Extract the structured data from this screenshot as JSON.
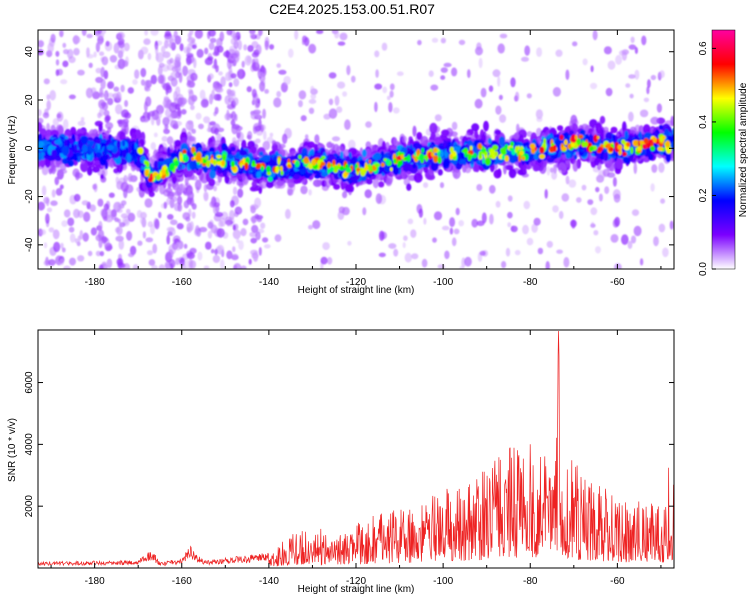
{
  "title": "C2E4.2025.153.00.51.R07",
  "chart_data": [
    {
      "type": "heatmap",
      "name": "spectrogram",
      "xlabel": "Height of straight line (km)",
      "ylabel": "Frequency (Hz)",
      "xlim": [
        -193,
        -47
      ],
      "ylim": [
        -50,
        49
      ],
      "xticks": [
        -180,
        -160,
        -140,
        -120,
        -100,
        -80,
        -60
      ],
      "yticks": [
        -40,
        -20,
        0,
        20,
        40
      ],
      "ridge": {
        "x": [
          -193,
          -180,
          -170,
          -167,
          -160,
          -150,
          -140,
          -130,
          -120,
          -110,
          -100,
          -90,
          -80,
          -70,
          -60,
          -47
        ],
        "y": [
          0,
          0,
          -1,
          -12,
          -4,
          -5,
          -8,
          -6,
          -9,
          -5,
          -2,
          -2,
          -1,
          2,
          0,
          3
        ]
      },
      "colorbar": {
        "label": "Normalized spectral amplitude",
        "range": [
          0.0,
          0.65
        ],
        "ticks": [
          0.0,
          0.2,
          0.4,
          0.6
        ],
        "colors": [
          "#ffffff",
          "#7b00ff",
          "#0000ff",
          "#00ffff",
          "#00ff00",
          "#ffff00",
          "#ff0000",
          "#ff00a0"
        ]
      }
    },
    {
      "type": "line",
      "name": "snr",
      "xlabel": "Height of straight line (km)",
      "ylabel": "SNR (10 * v/v)",
      "xlim": [
        -193,
        -47
      ],
      "ylim": [
        0,
        7700
      ],
      "xticks": [
        -180,
        -160,
        -140,
        -120,
        -100,
        -80,
        -60
      ],
      "yticks": [
        2000,
        4000,
        6000
      ],
      "line_color": "#ee2222",
      "envelope": {
        "x": [
          -193,
          -170,
          -167,
          -165,
          -160,
          -158,
          -155,
          -140,
          -135,
          -130,
          -125,
          -120,
          -110,
          -100,
          -90,
          -85,
          -80,
          -78,
          -74,
          -73.5,
          -73,
          -70,
          -65,
          -60,
          -55,
          -50,
          -48,
          -47
        ],
        "y": [
          200,
          250,
          650,
          200,
          300,
          750,
          250,
          500,
          1100,
          1500,
          900,
          1500,
          2000,
          2500,
          3300,
          3900,
          4400,
          4100,
          4200,
          7700,
          3800,
          3600,
          2800,
          2300,
          2200,
          2000,
          3500,
          2600
        ]
      }
    }
  ]
}
